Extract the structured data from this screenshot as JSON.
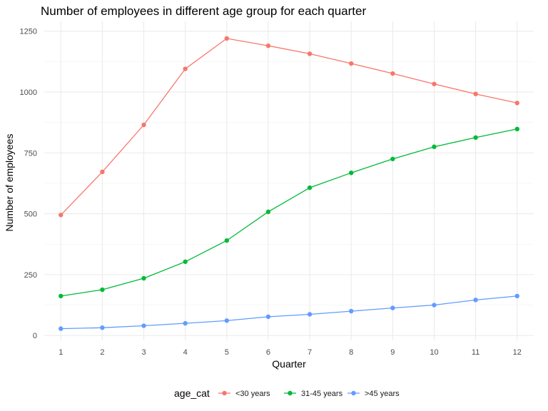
{
  "chart_data": {
    "type": "line",
    "title": "Number of employees in different age group for each quarter",
    "xlabel": "Quarter",
    "ylabel": "Number of employees",
    "x": [
      1,
      2,
      3,
      4,
      5,
      6,
      7,
      8,
      9,
      10,
      11,
      12
    ],
    "xlim": [
      0.6,
      12.4
    ],
    "ylim": [
      -20,
      1290
    ],
    "yticks": [
      0,
      250,
      500,
      750,
      1000,
      1250
    ],
    "ytick_labels": [
      "0",
      "250",
      "500",
      "750",
      "1000",
      "1250"
    ],
    "xtick_labels": [
      "1",
      "2",
      "3",
      "4",
      "5",
      "6",
      "7",
      "8",
      "9",
      "10",
      "11",
      "12"
    ],
    "grid": true,
    "legend": {
      "title": "age_cat",
      "position": "bottom"
    },
    "series": [
      {
        "name": "<30 years",
        "color": "#F8766D",
        "values": [
          495,
          672,
          865,
          1095,
          1220,
          1190,
          1157,
          1117,
          1076,
          1033,
          992,
          955
        ]
      },
      {
        "name": "31-45 years",
        "color": "#00BA38",
        "values": [
          162,
          188,
          235,
          303,
          390,
          508,
          607,
          668,
          725,
          775,
          813,
          848
        ]
      },
      {
        "name": ">45 years",
        "color": "#619CFF",
        "values": [
          28,
          32,
          40,
          50,
          61,
          77,
          87,
          100,
          113,
          125,
          146,
          162
        ]
      }
    ]
  }
}
